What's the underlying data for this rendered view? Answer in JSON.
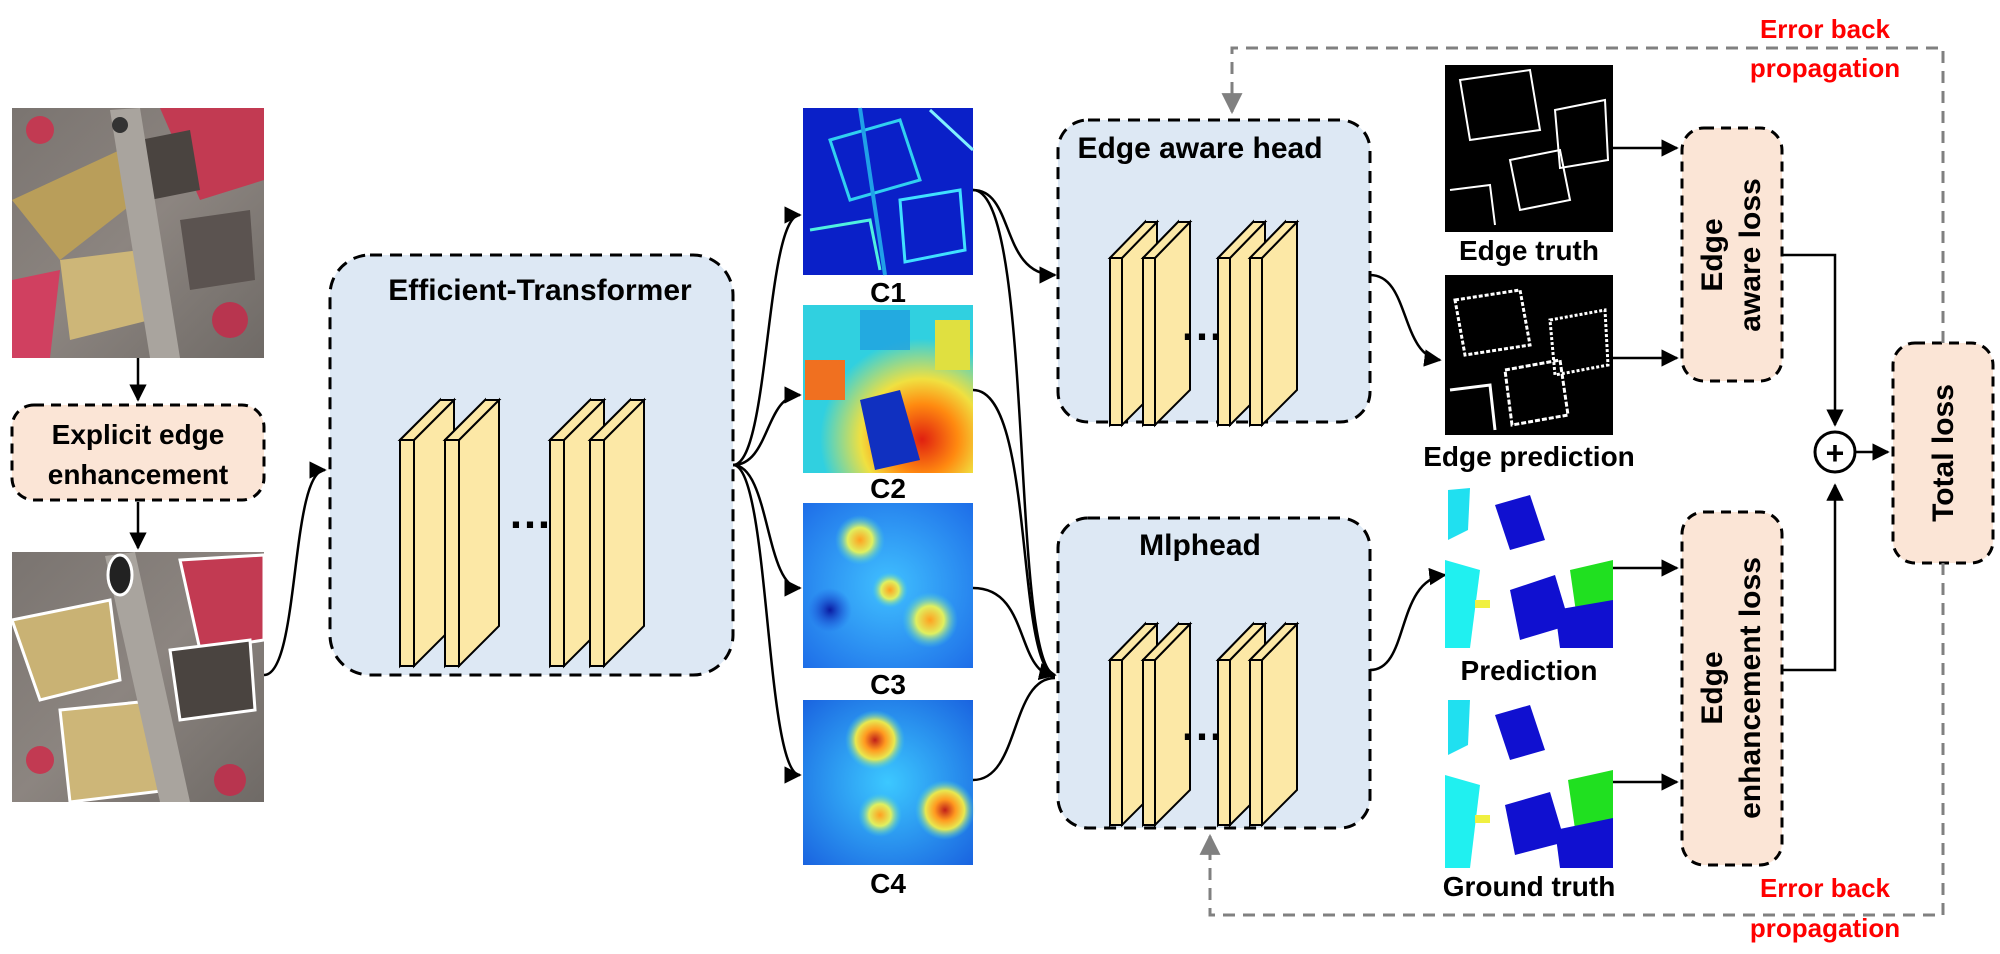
{
  "explicit_edge": {
    "line1": "Explicit edge",
    "line2": "enhancement"
  },
  "transformer": {
    "title": "Efficient-Transformer",
    "dots": "…"
  },
  "features": {
    "c1": "C1",
    "c2": "C2",
    "c3": "C3",
    "c4": "C4"
  },
  "edge_head": {
    "title": "Edge aware head",
    "dots": "…"
  },
  "mlp_head": {
    "title": "Mlphead",
    "dots": "…"
  },
  "outputs": {
    "edge_truth": "Edge truth",
    "edge_prediction": "Edge prediction",
    "prediction": "Prediction",
    "ground_truth": "Ground truth"
  },
  "losses": {
    "edge_aware": {
      "line1": "Edge",
      "line2": "aware loss"
    },
    "edge_enh": {
      "line1": "Edge",
      "line2": "enhancement loss"
    },
    "total": "Total loss",
    "plus": "+"
  },
  "error_top": {
    "line1": "Error back",
    "line2": "propagation"
  },
  "error_bottom": {
    "line1": "Error back",
    "line2": "propagation"
  },
  "colors": {
    "panel_blue": "#dde8f4",
    "loss_peach": "#fbe5d6",
    "layer_yellow": "#fce8a6",
    "error_red": "#ff0000",
    "dashed_gray": "#808080"
  }
}
